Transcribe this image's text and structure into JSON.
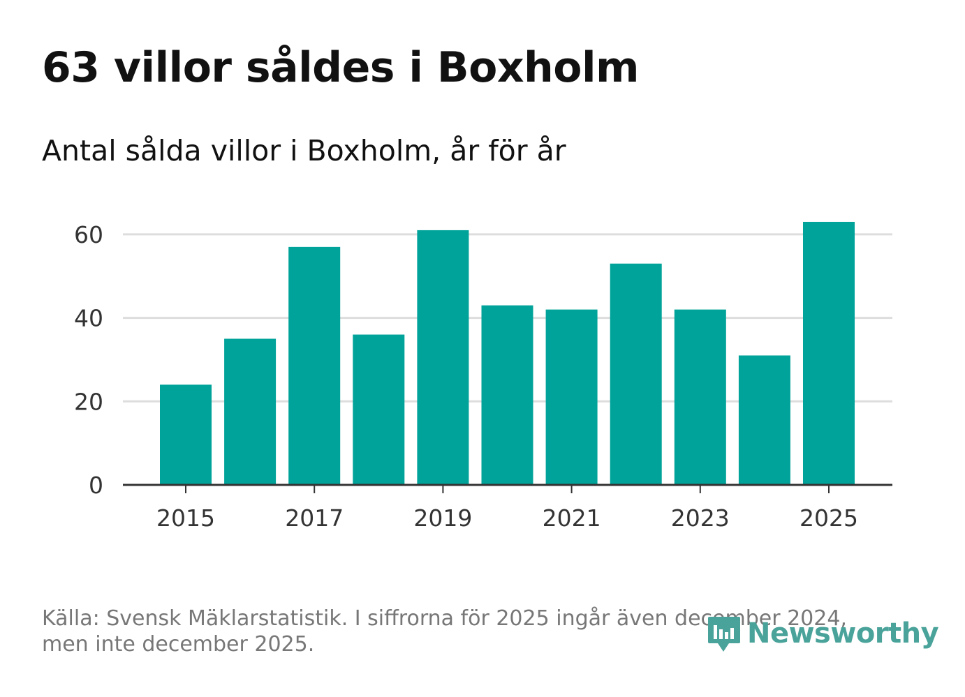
{
  "header": {
    "title": "63 villor såldes i Boxholm",
    "subtitle": "Antal sålda villor i Boxholm, år för år"
  },
  "chart_data": {
    "type": "bar",
    "title": "63 villor såldes i Boxholm",
    "subtitle": "Antal sålda villor i Boxholm, år för år",
    "categories": [
      "2015",
      "2016",
      "2017",
      "2018",
      "2019",
      "2020",
      "2021",
      "2022",
      "2023",
      "2024",
      "2025"
    ],
    "values": [
      24,
      35,
      57,
      36,
      61,
      43,
      42,
      53,
      42,
      31,
      63
    ],
    "x_tick_labels": [
      "2015",
      "2017",
      "2019",
      "2021",
      "2023",
      "2025"
    ],
    "y_ticks": [
      0,
      20,
      40,
      60
    ],
    "ylim": [
      0,
      66
    ],
    "xlabel": "",
    "ylabel": "",
    "grid": true,
    "bar_color": "#00a39a",
    "gridline_color": "#dddddd",
    "axis_color": "#333333"
  },
  "footer": {
    "source": "Källa: Svensk Mäklarstatistik. I siffrorna för 2025 ingår även december 2024, men inte december 2025.",
    "brand": "Newsworthy",
    "brand_color": "#4aa39a"
  }
}
